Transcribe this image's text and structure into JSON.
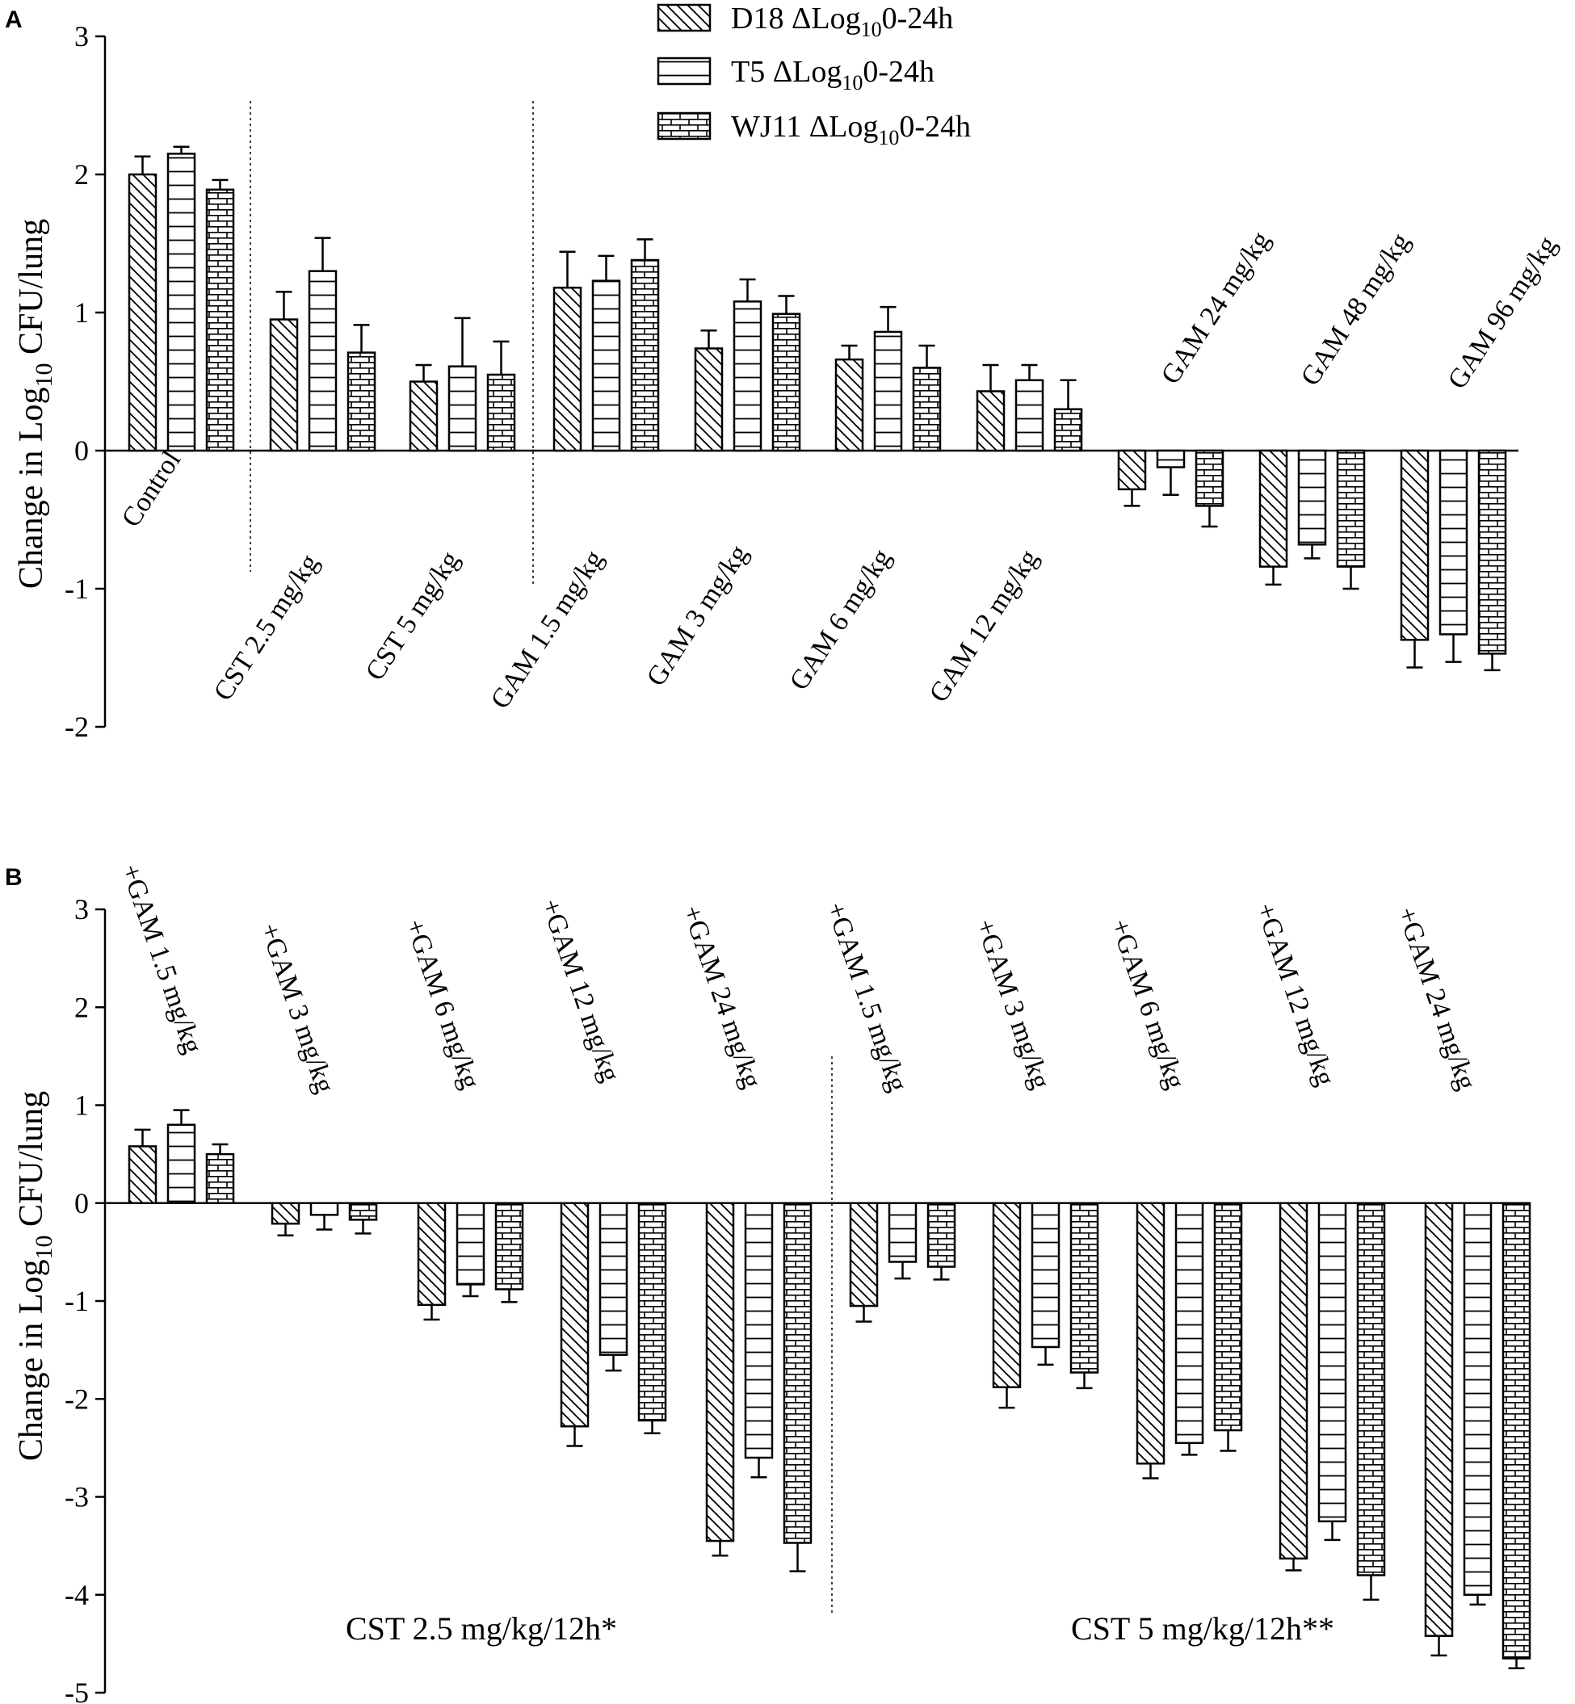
{
  "legend": [
    {
      "name": "D18",
      "label_pre": "D18 ΔLog",
      "label_sub": "10",
      "label_post": "0-24h",
      "pattern": "diagonal"
    },
    {
      "name": "T5",
      "label_pre": "T5 ΔLog",
      "label_sub": "10",
      "label_post": "0-24h",
      "pattern": "horizontal"
    },
    {
      "name": "WJ11",
      "label_pre": "WJ11 ΔLog",
      "label_sub": "10",
      "label_post": "0-24h",
      "pattern": "brick"
    }
  ],
  "chart_data": [
    {
      "panel": "A",
      "type": "bar",
      "ylabel_pre": "Change in Log",
      "ylabel_sub": "10",
      "ylabel_post": " CFU/lung",
      "ylim": [
        -2,
        3
      ],
      "yticks": [
        "3",
        "2",
        "1",
        "0",
        "-1",
        "-2"
      ],
      "categories": [
        "Control",
        "CST 2.5 mg/kg",
        "CST 5 mg/kg",
        "GAM 1.5 mg/kg",
        "GAM 3 mg/kg",
        "GAM 6 mg/kg",
        "GAM 12 mg/kg",
        "GAM 24 mg/kg",
        "GAM 48 mg/kg",
        "GAM 96 mg/kg"
      ],
      "series": [
        {
          "name": "D18",
          "values": [
            2.0,
            0.95,
            0.5,
            1.18,
            0.74,
            0.66,
            0.43,
            -0.28,
            -0.84,
            -1.37
          ],
          "errors": [
            0.13,
            0.2,
            0.12,
            0.26,
            0.13,
            0.1,
            0.19,
            0.12,
            0.13,
            0.2
          ]
        },
        {
          "name": "T5",
          "values": [
            2.15,
            1.3,
            0.61,
            1.23,
            1.08,
            0.86,
            0.51,
            -0.12,
            -0.68,
            -1.33
          ],
          "errors": [
            0.05,
            0.24,
            0.35,
            0.18,
            0.16,
            0.18,
            0.11,
            0.2,
            0.1,
            0.2
          ]
        },
        {
          "name": "WJ11",
          "values": [
            1.89,
            0.71,
            0.55,
            1.38,
            0.99,
            0.6,
            0.3,
            -0.4,
            -0.84,
            -1.47
          ],
          "errors": [
            0.07,
            0.2,
            0.24,
            0.15,
            0.13,
            0.16,
            0.21,
            0.15,
            0.16,
            0.12
          ]
        }
      ]
    },
    {
      "panel": "B",
      "type": "bar",
      "ylabel_pre": "Change in Log",
      "ylabel_sub": "10",
      "ylabel_post": " CFU/lung",
      "ylim": [
        -5,
        3
      ],
      "yticks": [
        "3",
        "2",
        "1",
        "0",
        "-1",
        "-2",
        "-3",
        "-4",
        "-5"
      ],
      "categories": [
        "+GAM 1.5 mg/kg",
        "+GAM 3 mg/kg",
        "+GAM 6 mg/kg",
        "+GAM 12 mg/kg",
        "+GAM 24 mg/kg",
        "+GAM 1.5 mg/kg",
        "+GAM 3 mg/kg",
        "+GAM 6 mg/kg",
        "+GAM 12 mg/kg",
        "+GAM 24 mg/kg"
      ],
      "group_notes": [
        "CST 2.5 mg/kg/12h*",
        "CST 5 mg/kg/12h**"
      ],
      "series": [
        {
          "name": "D18",
          "values": [
            0.58,
            -0.21,
            -1.04,
            -2.28,
            -3.45,
            -1.05,
            -1.88,
            -2.66,
            -3.63,
            -4.42
          ],
          "errors": [
            0.17,
            0.12,
            0.15,
            0.2,
            0.15,
            0.16,
            0.21,
            0.15,
            0.12,
            0.2
          ]
        },
        {
          "name": "T5",
          "values": [
            0.8,
            -0.12,
            -0.83,
            -1.55,
            -2.6,
            -0.6,
            -1.47,
            -2.45,
            -3.25,
            -4.0
          ],
          "errors": [
            0.15,
            0.15,
            0.12,
            0.16,
            0.2,
            0.17,
            0.18,
            0.12,
            0.19,
            0.1
          ]
        },
        {
          "name": "WJ11",
          "values": [
            0.5,
            -0.17,
            -0.88,
            -2.22,
            -3.47,
            -0.65,
            -1.73,
            -2.32,
            -3.8,
            -4.65
          ],
          "errors": [
            0.1,
            0.14,
            0.13,
            0.13,
            0.29,
            0.13,
            0.16,
            0.21,
            0.25,
            0.1
          ]
        }
      ]
    }
  ]
}
